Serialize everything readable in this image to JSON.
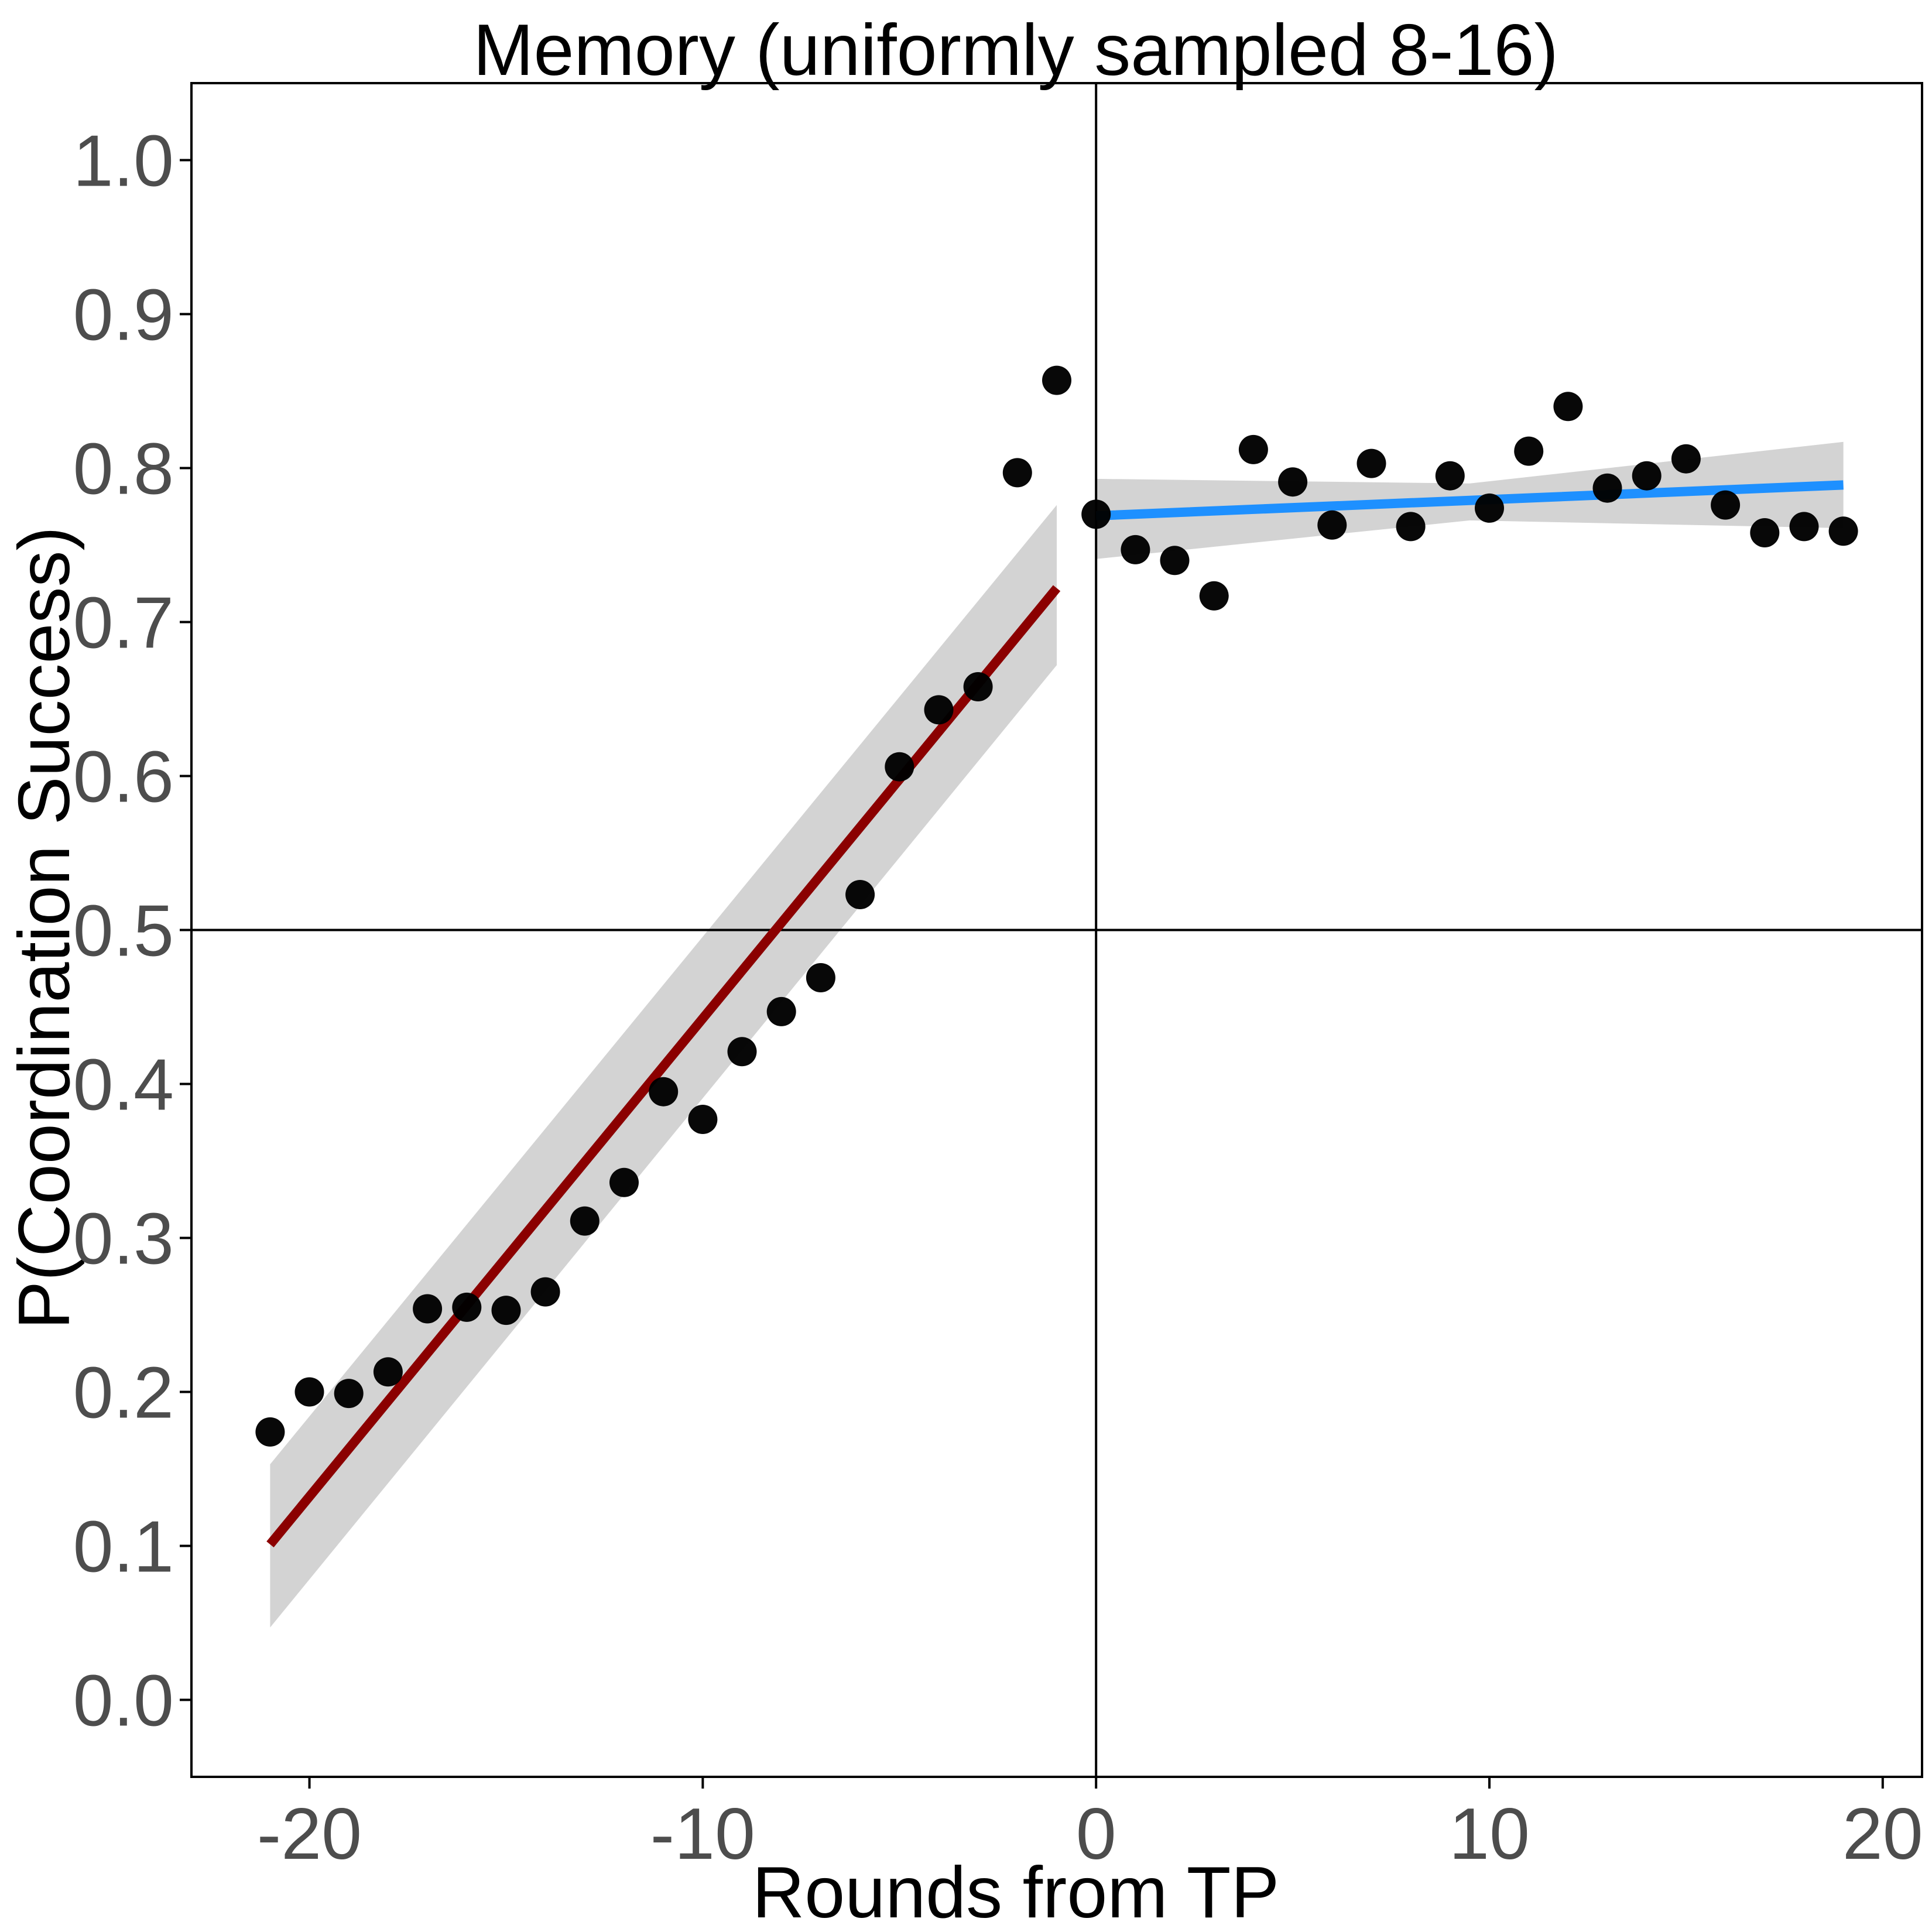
{
  "chart_data": {
    "type": "scatter",
    "title": "Memory (uniformly sampled 8-16)",
    "xlabel": "Rounds from TP",
    "ylabel": "P(Coordination Success)",
    "xlim": [
      -23,
      21
    ],
    "ylim": [
      -0.05,
      1.05
    ],
    "x_ticks": [
      -20,
      -10,
      0,
      10,
      20
    ],
    "x_tick_labels": [
      "-20",
      "-10",
      "0",
      "10",
      "20"
    ],
    "y_ticks": [
      0.0,
      0.1,
      0.2,
      0.3,
      0.4,
      0.5,
      0.6,
      0.7,
      0.8,
      0.9,
      1.0
    ],
    "y_tick_labels": [
      "0.0",
      "0.1",
      "0.2",
      "0.3",
      "0.4",
      "0.5",
      "0.6",
      "0.7",
      "0.8",
      "0.9",
      "1.0"
    ],
    "grid": false,
    "reference_lines": {
      "vertical_x": 0,
      "horizontal_y": 0.5
    },
    "points": {
      "color": "#000000",
      "x": [
        -21,
        -20,
        -19,
        -18,
        -17,
        -16,
        -15,
        -14,
        -13,
        -12,
        -11,
        -10,
        -9,
        -8,
        -7,
        -6,
        -5,
        -4,
        -3,
        -2,
        -1,
        0,
        1,
        2,
        3,
        4,
        5,
        6,
        7,
        8,
        9,
        10,
        11,
        12,
        13,
        14,
        15,
        16,
        17,
        18,
        19
      ],
      "y": [
        0.174,
        0.2,
        0.199,
        0.213,
        0.254,
        0.255,
        0.253,
        0.265,
        0.311,
        0.336,
        0.395,
        0.377,
        0.421,
        0.447,
        0.469,
        0.523,
        0.606,
        0.643,
        0.658,
        0.797,
        0.857,
        0.77,
        0.747,
        0.74,
        0.717,
        0.812,
        0.791,
        0.763,
        0.803,
        0.762,
        0.795,
        0.774,
        0.811,
        0.84,
        0.787,
        0.795,
        0.806,
        0.776,
        0.758,
        0.762,
        0.759
      ]
    },
    "fits": [
      {
        "segment": "before",
        "color": "#8b0000",
        "x": [
          -21,
          -1
        ],
        "y": [
          0.101,
          0.722
        ],
        "ci_lower": [
          0.047,
          0.672
        ],
        "ci_upper": [
          0.153,
          0.776
        ]
      },
      {
        "segment": "after",
        "color": "#1e90ff",
        "x": [
          0,
          9.5,
          19
        ],
        "y": [
          0.769,
          0.779,
          0.789
        ],
        "ci_lower": [
          0.741,
          0.766,
          0.761
        ],
        "ci_upper": [
          0.793,
          0.79,
          0.817
        ]
      }
    ],
    "ci_fill": "#d3d3d3"
  }
}
